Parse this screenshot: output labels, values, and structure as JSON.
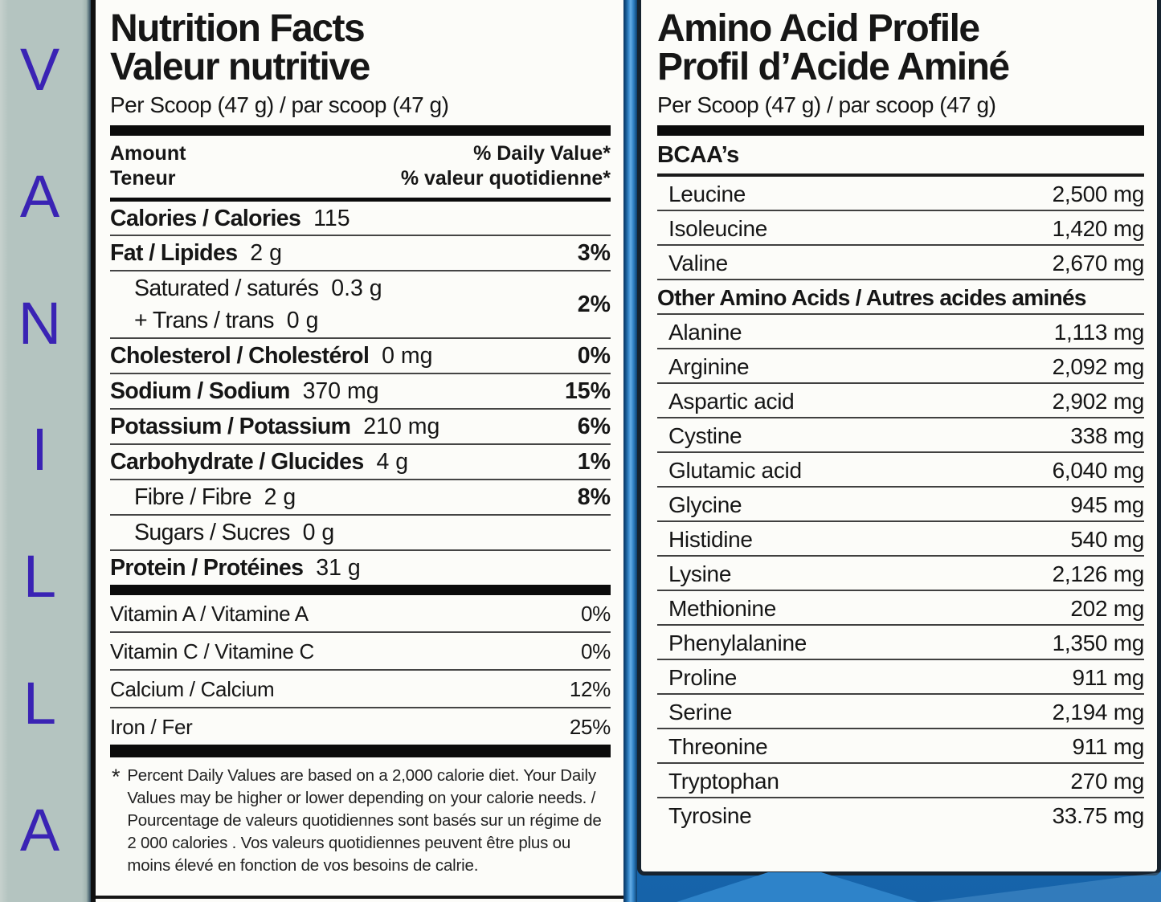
{
  "flavor_strip": {
    "letters": [
      "V",
      "A",
      "N",
      "I",
      "L",
      "L",
      "A"
    ],
    "text_color": "#3a23b4",
    "bg_color": "#b4c4c0"
  },
  "colors": {
    "background_blue": "#1a6ab4",
    "divider_highlight_blue": "#66ade5",
    "panel_white": "#fcfcf9",
    "label_text": "#161616"
  },
  "nutrition_panel": {
    "title_line1": "Nutrition Facts",
    "title_line2": "Valeur nutritive",
    "serving": "Per Scoop (47 g) / par scoop (47 g)",
    "header": {
      "amount_en": "Amount",
      "amount_fr": "Teneur",
      "dv_en": "% Daily Value*",
      "dv_fr": "% valeur quotidienne*"
    },
    "rows": [
      {
        "name": "Calories / Calories",
        "qty": "115",
        "dv": "",
        "level": "main"
      },
      {
        "name": "Fat / Lipides",
        "qty": "2 g",
        "dv": "3%",
        "level": "main"
      },
      {
        "name": "Saturated / saturés",
        "qty": "0.3 g",
        "name2": "+ Trans / trans",
        "qty2": "0 g",
        "dv": "2%",
        "level": "sub"
      },
      {
        "name": "Cholesterol / Cholestérol",
        "qty": "0 mg",
        "dv": "0%",
        "level": "main"
      },
      {
        "name": "Sodium / Sodium",
        "qty": "370 mg",
        "dv": "15%",
        "level": "main"
      },
      {
        "name": "Potassium / Potassium",
        "qty": "210 mg",
        "dv": "6%",
        "level": "main"
      },
      {
        "name": "Carbohydrate / Glucides",
        "qty": "4 g",
        "dv": "1%",
        "level": "main"
      },
      {
        "name": "Fibre / Fibre",
        "qty": "2 g",
        "dv": "8%",
        "level": "sub"
      },
      {
        "name": "Sugars / Sucres",
        "qty": "0 g",
        "dv": "",
        "level": "sub"
      },
      {
        "name": "Protein / Protéines",
        "qty": "31 g",
        "dv": "",
        "level": "main"
      }
    ],
    "vitamin_rows": [
      {
        "name": "Vitamin A / Vitamine A",
        "dv": "0%"
      },
      {
        "name": "Vitamin C / Vitamine C",
        "dv": "0%"
      },
      {
        "name": "Calcium / Calcium",
        "dv": "12%"
      },
      {
        "name": "Iron / Fer",
        "dv": "25%"
      }
    ],
    "footnote_symbol": "*",
    "footnote": "Percent Daily Values are based on a 2,000 calorie diet. Your Daily Values may be higher or lower depending on your calorie needs. / Pourcentage de valeurs quotidiennes sont basés sur un régime de 2 000 calories . Vos valeurs quotidiennes peuvent être plus ou moins élevé en fonction de vos besoins de calrie."
  },
  "amino_panel": {
    "title_line1": "Amino Acid Profile",
    "title_line2": "Profil d’Acide Aminé",
    "serving": "Per Scoop (47 g) / par scoop (47 g)",
    "bcaa_header": "BCAA’s",
    "bcaa_rows": [
      {
        "name": "Leucine",
        "value": "2,500 mg"
      },
      {
        "name": "Isoleucine",
        "value": "1,420 mg"
      },
      {
        "name": "Valine",
        "value": "2,670 mg"
      }
    ],
    "other_header": "Other Amino Acids / Autres acides aminés",
    "other_rows": [
      {
        "name": "Alanine",
        "value": "1,113 mg"
      },
      {
        "name": "Arginine",
        "value": "2,092 mg"
      },
      {
        "name": "Aspartic acid",
        "value": "2,902 mg"
      },
      {
        "name": "Cystine",
        "value": "338 mg"
      },
      {
        "name": "Glutamic acid",
        "value": "6,040 mg"
      },
      {
        "name": "Glycine",
        "value": "945 mg"
      },
      {
        "name": "Histidine",
        "value": "540 mg"
      },
      {
        "name": "Lysine",
        "value": "2,126 mg"
      },
      {
        "name": "Methionine",
        "value": "202 mg"
      },
      {
        "name": "Phenylalanine",
        "value": "1,350 mg"
      },
      {
        "name": "Proline",
        "value": "911 mg"
      },
      {
        "name": "Serine",
        "value": "2,194 mg"
      },
      {
        "name": "Threonine",
        "value": "911 mg"
      },
      {
        "name": "Tryptophan",
        "value": "270 mg"
      },
      {
        "name": "Tyrosine",
        "value": "33.75 mg"
      }
    ]
  }
}
